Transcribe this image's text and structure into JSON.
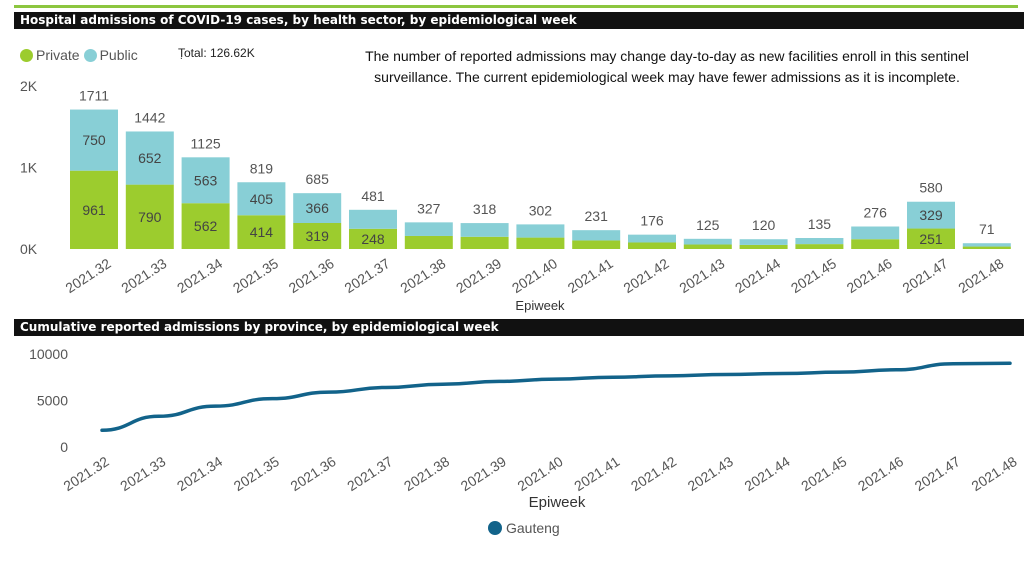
{
  "header1": {
    "title": "Hospital admissions of COVID-19 cases, by health sector, by epidemiological week"
  },
  "header2": {
    "title": "Cumulative reported admissions by province, by epidemiological week"
  },
  "legend1": {
    "private": "Private",
    "public": "Public",
    "separator": "."
  },
  "total_label": "Total: 126.62K",
  "notice": "The number of reported admissions may change day-to-day as new facilities enroll in this sentinel surveillance. The current epidemiological week may have fewer admissions as it is incomplete.",
  "legend2": {
    "gauteng": "Gauteng"
  },
  "colors": {
    "private": "#9ccc2e",
    "public": "#88cfd6",
    "line": "#12638a",
    "accent": "#8cc63f"
  },
  "chart_data": [
    {
      "type": "bar",
      "stacked": true,
      "title": "Hospital admissions of COVID-19 cases, by health sector, by epidemiological week",
      "xlabel": "Epiweek",
      "ylabel": "",
      "categories": [
        "2021.32",
        "2021.33",
        "2021.34",
        "2021.35",
        "2021.36",
        "2021.37",
        "2021.38",
        "2021.39",
        "2021.40",
        "2021.41",
        "2021.42",
        "2021.43",
        "2021.44",
        "2021.45",
        "2021.46",
        "2021.47",
        "2021.48"
      ],
      "totals": [
        1711,
        1442,
        1125,
        819,
        685,
        481,
        327,
        318,
        302,
        231,
        176,
        125,
        120,
        135,
        276,
        580,
        71
      ],
      "series": [
        {
          "name": "Private",
          "values": [
            961,
            790,
            562,
            414,
            319,
            248,
            160,
            150,
            140,
            105,
            80,
            55,
            50,
            60,
            120,
            251,
            30
          ],
          "labels": [
            "961",
            "790",
            "562",
            "414",
            "319",
            "248",
            "",
            "",
            "",
            "",
            "",
            "",
            "",
            "",
            "",
            "251",
            ""
          ]
        },
        {
          "name": "Public",
          "values": [
            750,
            652,
            563,
            405,
            366,
            233,
            167,
            168,
            162,
            126,
            96,
            70,
            70,
            75,
            156,
            329,
            41
          ],
          "labels": [
            "750",
            "652",
            "563",
            "405",
            "366",
            "",
            "",
            "",
            "",
            "",
            "",
            "",
            "",
            "",
            "",
            "329",
            ""
          ]
        }
      ],
      "ylim": [
        0,
        2000
      ],
      "yticks": [
        {
          "value": 0,
          "label": "0K"
        },
        {
          "value": 1000,
          "label": "1K"
        },
        {
          "value": 2000,
          "label": "2K"
        }
      ],
      "legend": "top-left",
      "grid": false
    },
    {
      "type": "line",
      "title": "Cumulative reported admissions by province, by epidemiological week",
      "xlabel": "Epiweek",
      "ylabel": "",
      "categories": [
        "2021.32",
        "2021.33",
        "2021.34",
        "2021.35",
        "2021.36",
        "2021.37",
        "2021.38",
        "2021.39",
        "2021.40",
        "2021.41",
        "2021.42",
        "2021.43",
        "2021.44",
        "2021.45",
        "2021.46",
        "2021.47",
        "2021.48"
      ],
      "series": [
        {
          "name": "Gauteng",
          "values": [
            1800,
            3300,
            4400,
            5200,
            5900,
            6400,
            6750,
            7050,
            7300,
            7500,
            7650,
            7800,
            7900,
            8050,
            8300,
            8950,
            9000
          ]
        }
      ],
      "ylim": [
        0,
        10000
      ],
      "yticks": [
        {
          "value": 0,
          "label": "0"
        },
        {
          "value": 5000,
          "label": "5000"
        },
        {
          "value": 10000,
          "label": "10000"
        }
      ],
      "legend": "bottom-center",
      "grid": false
    }
  ]
}
